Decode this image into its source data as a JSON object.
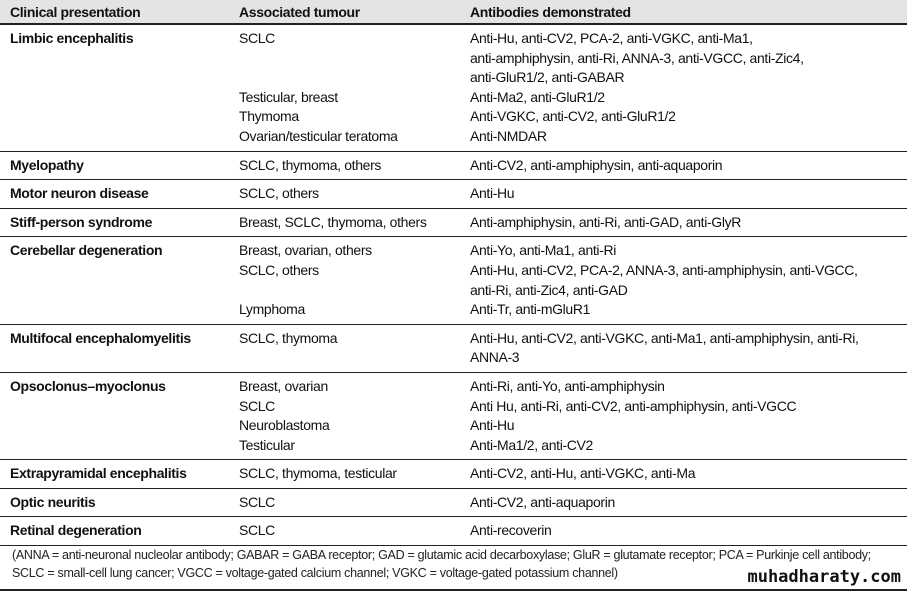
{
  "header": {
    "col1": "Clinical presentation",
    "col2": "Associated tumour",
    "col3": "Antibodies demonstrated"
  },
  "rows": [
    {
      "presentation": "Limbic encephalitis",
      "items": [
        {
          "tumour": "SCLC",
          "antibodies": "Anti-Hu, anti-CV2, PCA-2, anti-VGKC, anti-Ma1,\nanti-amphiphysin, anti-Ri, ANNA-3, anti-VGCC, anti-Zic4,\nanti-GluR1/2, anti-GABAR"
        },
        {
          "tumour": "Testicular, breast",
          "antibodies": "Anti-Ma2, anti-GluR1/2"
        },
        {
          "tumour": "Thymoma",
          "antibodies": "Anti-VGKC, anti-CV2, anti-GluR1/2"
        },
        {
          "tumour": "Ovarian/testicular teratoma",
          "antibodies": "Anti-NMDAR"
        }
      ]
    },
    {
      "presentation": "Myelopathy",
      "items": [
        {
          "tumour": "SCLC, thymoma, others",
          "antibodies": "Anti-CV2, anti-amphiphysin, anti-aquaporin"
        }
      ]
    },
    {
      "presentation": "Motor neuron disease",
      "items": [
        {
          "tumour": "SCLC, others",
          "antibodies": "Anti-Hu"
        }
      ]
    },
    {
      "presentation": "Stiff-person syndrome",
      "items": [
        {
          "tumour": "Breast, SCLC, thymoma, others",
          "antibodies": "Anti-amphiphysin, anti-Ri, anti-GAD, anti-GlyR"
        }
      ]
    },
    {
      "presentation": "Cerebellar degeneration",
      "items": [
        {
          "tumour": "Breast, ovarian, others",
          "antibodies": "Anti-Yo, anti-Ma1, anti-Ri"
        },
        {
          "tumour": "SCLC, others",
          "antibodies": "Anti-Hu, anti-CV2, PCA-2, ANNA-3, anti-amphiphysin, anti-VGCC,\nanti-Ri, anti-Zic4, anti-GAD"
        },
        {
          "tumour": "Lymphoma",
          "antibodies": "Anti-Tr, anti-mGluR1"
        }
      ]
    },
    {
      "presentation": "Multifocal encephalomyelitis",
      "items": [
        {
          "tumour": "SCLC, thymoma",
          "antibodies": "Anti-Hu, anti-CV2, anti-VGKC, anti-Ma1, anti-amphiphysin, anti-Ri,\nANNA-3"
        }
      ]
    },
    {
      "presentation": "Opsoclonus–myoclonus",
      "items": [
        {
          "tumour": "Breast, ovarian",
          "antibodies": "Anti-Ri, anti-Yo, anti-amphiphysin"
        },
        {
          "tumour": "SCLC",
          "antibodies": "Anti Hu, anti-Ri, anti-CV2, anti-amphiphysin, anti-VGCC"
        },
        {
          "tumour": "Neuroblastoma",
          "antibodies": "Anti-Hu"
        },
        {
          "tumour": "Testicular",
          "antibodies": "Anti-Ma1/2, anti-CV2"
        }
      ]
    },
    {
      "presentation": "Extrapyramidal encephalitis",
      "items": [
        {
          "tumour": "SCLC, thymoma, testicular",
          "antibodies": "Anti-CV2, anti-Hu, anti-VGKC, anti-Ma"
        }
      ]
    },
    {
      "presentation": "Optic neuritis",
      "items": [
        {
          "tumour": "SCLC",
          "antibodies": "Anti-CV2, anti-aquaporin"
        }
      ]
    },
    {
      "presentation": "Retinal degeneration",
      "items": [
        {
          "tumour": "SCLC",
          "antibodies": "Anti-recoverin"
        }
      ]
    }
  ],
  "footnote": "(ANNA = anti-neuronal nucleolar antibody; GABAR = GABA receptor; GAD = glutamic acid decarboxylase; GluR = glutamate receptor; PCA = Purkinje cell antibody; SCLC = small-cell lung cancer; VGCC = voltage-gated calcium channel; VGKC = voltage-gated potassium channel)",
  "watermark": "muhadharaty.com"
}
